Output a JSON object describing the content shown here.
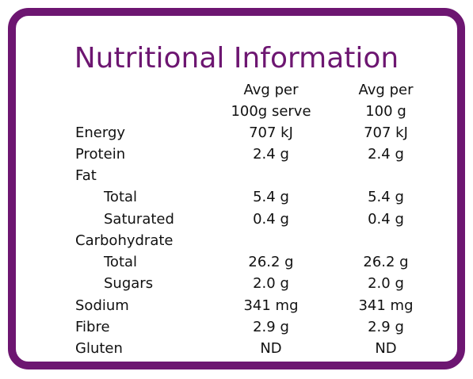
{
  "title": "Nutritional Information",
  "header": {
    "col1_line1": "Avg per",
    "col1_line2": "100g serve",
    "col2_line1": "Avg per",
    "col2_line2": "100 g"
  },
  "rows": [
    {
      "label": "Energy",
      "sub": false,
      "col1": "707 kJ",
      "col2": "707 kJ"
    },
    {
      "label": "Protein",
      "sub": false,
      "col1": "2.4 g",
      "col2": "2.4 g"
    },
    {
      "label": "Fat",
      "sub": false,
      "col1": "",
      "col2": ""
    },
    {
      "label": "Total",
      "sub": true,
      "col1": "5.4 g",
      "col2": "5.4 g"
    },
    {
      "label": "Saturated",
      "sub": true,
      "col1": "0.4 g",
      "col2": "0.4 g"
    },
    {
      "label": "Carbohydrate",
      "sub": false,
      "col1": "",
      "col2": ""
    },
    {
      "label": "Total",
      "sub": true,
      "col1": "26.2 g",
      "col2": "26.2 g"
    },
    {
      "label": "Sugars",
      "sub": true,
      "col1": "2.0 g",
      "col2": "2.0 g"
    },
    {
      "label": "Sodium",
      "sub": false,
      "col1": "341 mg",
      "col2": "341 mg"
    },
    {
      "label": "Fibre",
      "sub": false,
      "col1": "2.9 g",
      "col2": "2.9 g"
    },
    {
      "label": "Gluten",
      "sub": false,
      "col1": "ND",
      "col2": "ND"
    }
  ],
  "colors": {
    "accent": "#6d1671",
    "text": "#111111"
  }
}
